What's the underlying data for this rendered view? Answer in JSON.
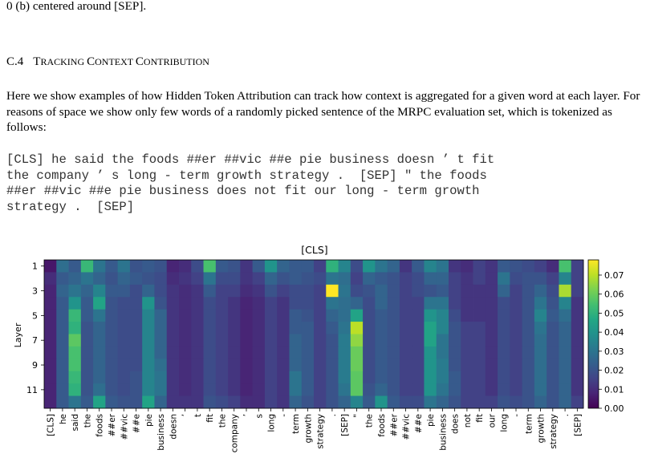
{
  "prev_caption_tail": "0 (b) centered around [SEP].",
  "section": {
    "number": "C.4",
    "title_parts": [
      [
        "T",
        "RACKING "
      ],
      [
        "C",
        "ONTEXT "
      ],
      [
        "C",
        "ONTRIBUTION"
      ]
    ]
  },
  "paragraph": "Here we show examples of how Hidden Token Attribution can track how context is aggregated for a given word at each layer. For reasons of space we show only few words of a randomly picked sentence of the MRPC evaluation set, which is tokenized as follows:",
  "tokenized_lines": [
    "[CLS] he said the foods ##er ##vic ##e pie business doesn ’ t fit",
    "the company ’ s long - term growth strategy .  [SEP] \" the foods",
    "##er ##vic ##e pie business does not fit our long - term growth",
    "strategy .  [SEP]"
  ],
  "chart_data": {
    "type": "heatmap",
    "title": "[CLS]",
    "ylabel": "Layer",
    "xlabel": "",
    "colormap": "viridis",
    "vmin": 0.0,
    "vmax": 0.078,
    "colorbar_ticks": [
      "0.00",
      "0.01",
      "0.02",
      "0.03",
      "0.04",
      "0.05",
      "0.06",
      "0.07"
    ],
    "colorbar_tick_values": [
      0.0,
      0.01,
      0.02,
      0.03,
      0.04,
      0.05,
      0.06,
      0.07
    ],
    "y_tick_labels": [
      "1",
      "3",
      "5",
      "7",
      "9",
      "11"
    ],
    "y_tick_layers": [
      1,
      3,
      5,
      7,
      9,
      11
    ],
    "layers": [
      1,
      2,
      3,
      4,
      5,
      6,
      7,
      8,
      9,
      10,
      11,
      12
    ],
    "x_tokens": [
      "[CLS]",
      "he",
      "said",
      "the",
      "foods",
      "##er",
      "##vic",
      "##e",
      "pie",
      "business",
      "doesn",
      "’",
      "t",
      "fit",
      "the",
      "company",
      "’",
      "s",
      "long",
      "-",
      "term",
      "growth",
      "strategy",
      ".",
      "[SEP]",
      "\"",
      "the",
      "foods",
      "##er",
      "##vic",
      "##e",
      "pie",
      "business",
      "does",
      "not",
      "fit",
      "our",
      "long",
      "-",
      "term",
      "growth",
      "strategy",
      ".",
      "[SEP]"
    ],
    "values": [
      [
        0.005,
        0.028,
        0.022,
        0.052,
        0.03,
        0.022,
        0.03,
        0.02,
        0.022,
        0.02,
        0.008,
        0.01,
        0.018,
        0.055,
        0.022,
        0.02,
        0.012,
        0.022,
        0.04,
        0.025,
        0.022,
        0.022,
        0.015,
        0.05,
        0.035,
        0.018,
        0.04,
        0.03,
        0.025,
        0.012,
        0.022,
        0.035,
        0.03,
        0.012,
        0.01,
        0.015,
        0.012,
        0.022,
        0.02,
        0.018,
        0.015,
        0.01,
        0.055,
        0.015
      ],
      [
        0.01,
        0.022,
        0.025,
        0.03,
        0.025,
        0.02,
        0.025,
        0.022,
        0.02,
        0.018,
        0.01,
        0.012,
        0.015,
        0.03,
        0.018,
        0.018,
        0.012,
        0.015,
        0.025,
        0.02,
        0.022,
        0.02,
        0.018,
        0.03,
        0.028,
        0.015,
        0.025,
        0.022,
        0.02,
        0.015,
        0.018,
        0.025,
        0.025,
        0.015,
        0.012,
        0.015,
        0.012,
        0.03,
        0.018,
        0.02,
        0.02,
        0.015,
        0.035,
        0.015
      ],
      [
        0.008,
        0.025,
        0.03,
        0.025,
        0.035,
        0.022,
        0.022,
        0.018,
        0.025,
        0.018,
        0.012,
        0.01,
        0.012,
        0.022,
        0.015,
        0.015,
        0.01,
        0.012,
        0.02,
        0.015,
        0.018,
        0.018,
        0.015,
        0.078,
        0.03,
        0.018,
        0.02,
        0.025,
        0.02,
        0.015,
        0.018,
        0.02,
        0.022,
        0.015,
        0.012,
        0.012,
        0.012,
        0.025,
        0.015,
        0.02,
        0.025,
        0.018,
        0.068,
        0.015
      ],
      [
        0.008,
        0.022,
        0.04,
        0.022,
        0.045,
        0.02,
        0.018,
        0.018,
        0.04,
        0.02,
        0.012,
        0.01,
        0.012,
        0.018,
        0.015,
        0.012,
        0.008,
        0.01,
        0.015,
        0.012,
        0.018,
        0.018,
        0.015,
        0.03,
        0.028,
        0.025,
        0.018,
        0.025,
        0.02,
        0.015,
        0.015,
        0.03,
        0.03,
        0.015,
        0.012,
        0.012,
        0.012,
        0.018,
        0.015,
        0.02,
        0.03,
        0.02,
        0.035,
        0.012
      ],
      [
        0.008,
        0.022,
        0.052,
        0.022,
        0.03,
        0.02,
        0.018,
        0.018,
        0.035,
        0.025,
        0.012,
        0.01,
        0.012,
        0.018,
        0.015,
        0.012,
        0.008,
        0.01,
        0.015,
        0.012,
        0.022,
        0.02,
        0.015,
        0.025,
        0.028,
        0.045,
        0.018,
        0.022,
        0.02,
        0.015,
        0.015,
        0.04,
        0.035,
        0.018,
        0.012,
        0.012,
        0.012,
        0.018,
        0.015,
        0.02,
        0.035,
        0.022,
        0.028,
        0.012
      ],
      [
        0.008,
        0.022,
        0.05,
        0.02,
        0.025,
        0.02,
        0.018,
        0.018,
        0.035,
        0.025,
        0.012,
        0.01,
        0.012,
        0.018,
        0.015,
        0.012,
        0.008,
        0.01,
        0.015,
        0.012,
        0.022,
        0.022,
        0.015,
        0.022,
        0.03,
        0.07,
        0.018,
        0.022,
        0.02,
        0.015,
        0.015,
        0.045,
        0.035,
        0.02,
        0.015,
        0.015,
        0.012,
        0.018,
        0.015,
        0.02,
        0.03,
        0.02,
        0.025,
        0.012
      ],
      [
        0.008,
        0.022,
        0.058,
        0.02,
        0.025,
        0.02,
        0.018,
        0.018,
        0.035,
        0.025,
        0.012,
        0.01,
        0.012,
        0.018,
        0.015,
        0.012,
        0.008,
        0.01,
        0.015,
        0.012,
        0.025,
        0.022,
        0.015,
        0.02,
        0.032,
        0.065,
        0.018,
        0.022,
        0.02,
        0.015,
        0.015,
        0.045,
        0.03,
        0.02,
        0.015,
        0.015,
        0.012,
        0.018,
        0.015,
        0.02,
        0.028,
        0.02,
        0.025,
        0.012
      ],
      [
        0.008,
        0.022,
        0.055,
        0.02,
        0.025,
        0.02,
        0.018,
        0.018,
        0.035,
        0.025,
        0.012,
        0.01,
        0.012,
        0.018,
        0.015,
        0.012,
        0.008,
        0.01,
        0.015,
        0.012,
        0.025,
        0.022,
        0.015,
        0.02,
        0.032,
        0.06,
        0.018,
        0.022,
        0.02,
        0.015,
        0.015,
        0.04,
        0.03,
        0.02,
        0.015,
        0.015,
        0.012,
        0.018,
        0.015,
        0.02,
        0.028,
        0.02,
        0.025,
        0.012
      ],
      [
        0.008,
        0.022,
        0.055,
        0.02,
        0.025,
        0.02,
        0.018,
        0.018,
        0.035,
        0.028,
        0.012,
        0.01,
        0.012,
        0.018,
        0.015,
        0.012,
        0.008,
        0.01,
        0.015,
        0.012,
        0.025,
        0.022,
        0.015,
        0.02,
        0.032,
        0.06,
        0.018,
        0.022,
        0.02,
        0.015,
        0.015,
        0.04,
        0.032,
        0.02,
        0.015,
        0.015,
        0.012,
        0.018,
        0.015,
        0.02,
        0.028,
        0.02,
        0.025,
        0.012
      ],
      [
        0.008,
        0.022,
        0.052,
        0.02,
        0.025,
        0.02,
        0.018,
        0.02,
        0.035,
        0.03,
        0.012,
        0.01,
        0.012,
        0.018,
        0.015,
        0.012,
        0.008,
        0.01,
        0.015,
        0.012,
        0.03,
        0.022,
        0.015,
        0.02,
        0.032,
        0.058,
        0.018,
        0.022,
        0.02,
        0.015,
        0.015,
        0.04,
        0.032,
        0.022,
        0.015,
        0.015,
        0.012,
        0.018,
        0.015,
        0.02,
        0.028,
        0.02,
        0.025,
        0.012
      ],
      [
        0.008,
        0.022,
        0.05,
        0.02,
        0.028,
        0.02,
        0.018,
        0.02,
        0.035,
        0.03,
        0.012,
        0.01,
        0.012,
        0.018,
        0.015,
        0.012,
        0.008,
        0.01,
        0.015,
        0.012,
        0.03,
        0.022,
        0.015,
        0.02,
        0.03,
        0.058,
        0.02,
        0.025,
        0.02,
        0.015,
        0.015,
        0.04,
        0.03,
        0.022,
        0.015,
        0.015,
        0.012,
        0.018,
        0.015,
        0.02,
        0.028,
        0.02,
        0.025,
        0.012
      ],
      [
        0.008,
        0.022,
        0.03,
        0.022,
        0.045,
        0.022,
        0.02,
        0.02,
        0.045,
        0.025,
        0.012,
        0.012,
        0.012,
        0.02,
        0.018,
        0.015,
        0.01,
        0.01,
        0.015,
        0.012,
        0.025,
        0.02,
        0.015,
        0.02,
        0.025,
        0.035,
        0.022,
        0.04,
        0.022,
        0.018,
        0.018,
        0.03,
        0.025,
        0.02,
        0.015,
        0.015,
        0.015,
        0.02,
        0.018,
        0.02,
        0.025,
        0.02,
        0.025,
        0.015
      ]
    ]
  }
}
